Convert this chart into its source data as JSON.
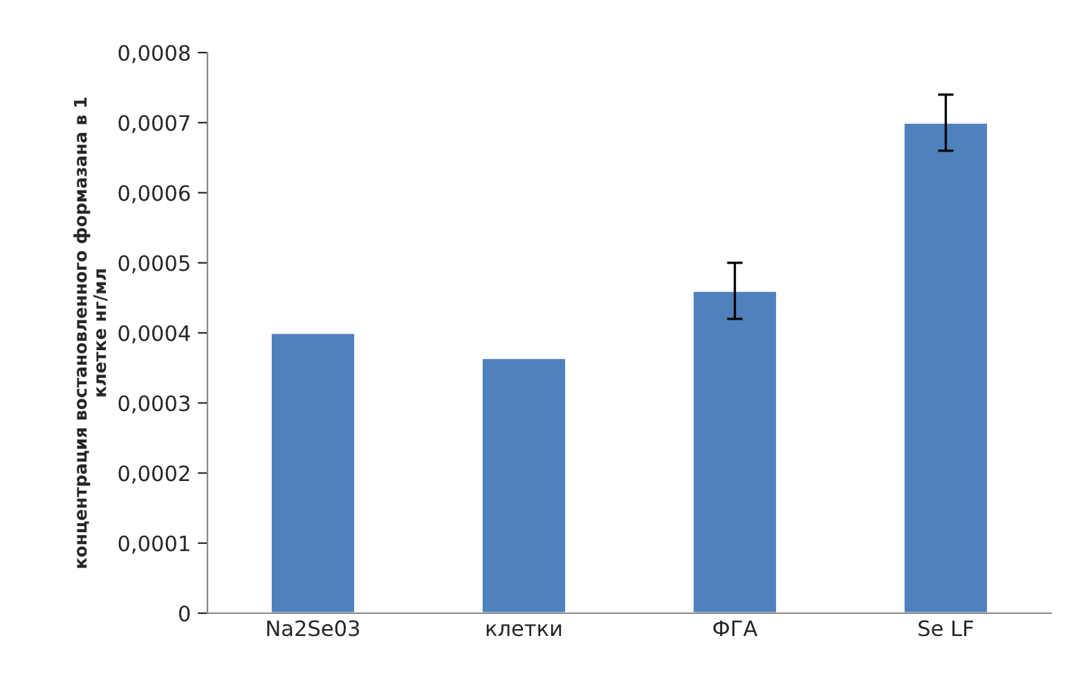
{
  "chart_data": {
    "type": "bar",
    "ylabel": "концентрация востановленного формазана в 1\nклетке нг/мл",
    "categories": [
      "Na2Se03",
      "клетки",
      "ФГА",
      "Se LF"
    ],
    "values": [
      0.0004,
      0.000364,
      0.00046,
      0.0007
    ],
    "errors": [
      null,
      null,
      4e-05,
      4e-05
    ],
    "color": "#4f81bd",
    "ylim": [
      0,
      0.0008
    ],
    "yticks": [
      {
        "value": 0,
        "label": "0"
      },
      {
        "value": 0.0001,
        "label": "0,0001"
      },
      {
        "value": 0.0002,
        "label": "0,0002"
      },
      {
        "value": 0.0003,
        "label": "0,0003"
      },
      {
        "value": 0.0004,
        "label": "0,0004"
      },
      {
        "value": 0.0005,
        "label": "0,0005"
      },
      {
        "value": 0.0006,
        "label": "0,0006"
      },
      {
        "value": 0.0007,
        "label": "0,0007"
      },
      {
        "value": 0.0008,
        "label": "0,0008"
      }
    ],
    "grid": false,
    "legend": false
  }
}
